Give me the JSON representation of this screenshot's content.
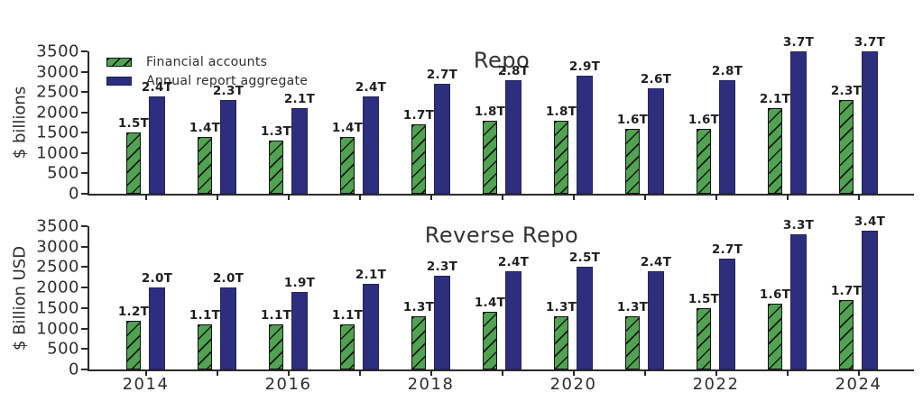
{
  "colors": {
    "financial_accounts_green": "#50a351",
    "annual_report_navy": "#2e2e7e",
    "axis": "#2a2a2a",
    "background": "#ffffff"
  },
  "legend": {
    "position": "upper-left-of-top-chart",
    "items": [
      {
        "label": "Financial accounts",
        "swatch": "green-hatched"
      },
      {
        "label": "Annual report aggregate",
        "swatch": "navy-solid"
      }
    ]
  },
  "chart_data": [
    {
      "type": "bar",
      "title": "Repo",
      "ylabel": "$ billions",
      "ylim": [
        0,
        3500
      ],
      "yticks": [
        0,
        500,
        1000,
        1500,
        2000,
        2500,
        3000,
        3500
      ],
      "grid": false,
      "legend_visible": true,
      "show_xtick_labels": false,
      "categories": [
        2014,
        2015,
        2016,
        2017,
        2018,
        2019,
        2020,
        2021,
        2022,
        2023,
        2024
      ],
      "xtick_labels": [
        "2014",
        "",
        "2016",
        "",
        "2018",
        "",
        "2020",
        "",
        "2022",
        "",
        "2024"
      ],
      "series": [
        {
          "name": "Financial accounts",
          "values": [
            1500,
            1400,
            1300,
            1400,
            1700,
            1800,
            1800,
            1600,
            1600,
            2100,
            2300
          ],
          "labels": [
            "1.5T",
            "1.4T",
            "1.3T",
            "1.4T",
            "1.7T",
            "1.8T",
            "1.8T",
            "1.6T",
            "1.6T",
            "2.1T",
            "2.3T"
          ]
        },
        {
          "name": "Annual report aggregate",
          "values": [
            2400,
            2300,
            2100,
            2400,
            2700,
            2800,
            2900,
            2600,
            2800,
            3700,
            3700
          ],
          "labels": [
            "2.4T",
            "2.3T",
            "2.1T",
            "2.4T",
            "2.7T",
            "2.8T",
            "2.9T",
            "2.6T",
            "2.8T",
            "3.7T",
            "3.7T"
          ]
        }
      ]
    },
    {
      "type": "bar",
      "title": "Reverse Repo",
      "ylabel": "$ Billion USD",
      "ylim": [
        0,
        3500
      ],
      "yticks": [
        0,
        500,
        1000,
        1500,
        2000,
        2500,
        3000,
        3500
      ],
      "grid": false,
      "legend_visible": false,
      "show_xtick_labels": true,
      "categories": [
        2014,
        2015,
        2016,
        2017,
        2018,
        2019,
        2020,
        2021,
        2022,
        2023,
        2024
      ],
      "xtick_labels": [
        "2014",
        "",
        "2016",
        "",
        "2018",
        "",
        "2020",
        "",
        "2022",
        "",
        "2024"
      ],
      "series": [
        {
          "name": "Financial accounts",
          "values": [
            1200,
            1100,
            1100,
            1100,
            1300,
            1400,
            1300,
            1300,
            1500,
            1600,
            1700
          ],
          "labels": [
            "1.2T",
            "1.1T",
            "1.1T",
            "1.1T",
            "1.3T",
            "1.4T",
            "1.3T",
            "1.3T",
            "1.5T",
            "1.6T",
            "1.7T"
          ]
        },
        {
          "name": "Annual report aggregate",
          "values": [
            2000,
            2000,
            1900,
            2100,
            2300,
            2400,
            2500,
            2400,
            2700,
            3300,
            3400
          ],
          "labels": [
            "2.0T",
            "2.0T",
            "1.9T",
            "2.1T",
            "2.3T",
            "2.4T",
            "2.5T",
            "2.4T",
            "2.7T",
            "3.3T",
            "3.4T"
          ]
        }
      ]
    }
  ]
}
